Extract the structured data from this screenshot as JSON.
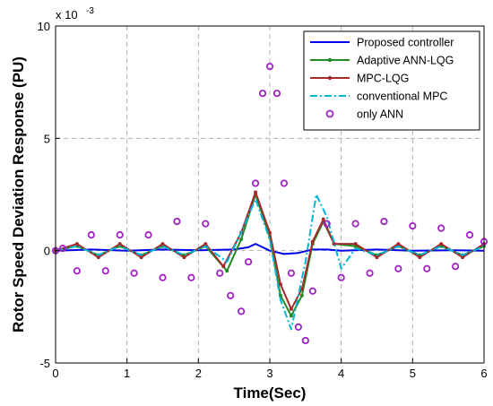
{
  "chart_data": {
    "type": "line",
    "title": "",
    "xlabel": "Time(Sec)",
    "ylabel": "Rotor Speed  Deviation Response  (PU)",
    "y_multiplier_label": "x 10",
    "y_multiplier_exponent": "-3",
    "xlim": [
      0,
      6
    ],
    "ylim": [
      -5,
      10
    ],
    "xticks": [
      0,
      1,
      2,
      3,
      4,
      5,
      6
    ],
    "yticks": [
      -5,
      0,
      5,
      10
    ],
    "grid": true,
    "legend_position": "top-right",
    "series": [
      {
        "name": "Proposed controller",
        "color": "#0000ee",
        "style": "solid",
        "x": [
          0,
          0.5,
          1,
          1.5,
          2,
          2.5,
          2.7,
          2.8,
          2.9,
          3.0,
          3.2,
          3.4,
          3.6,
          3.8,
          4.0,
          4.5,
          5,
          5.5,
          6
        ],
        "y": [
          0,
          0.05,
          0,
          0.05,
          0.02,
          0.05,
          0.15,
          0.3,
          0.15,
          0.0,
          -0.15,
          -0.1,
          0.05,
          0.05,
          0,
          0.05,
          0,
          0.02,
          0
        ]
      },
      {
        "name": "Adaptive ANN-LQG",
        "color": "#228b22",
        "style": "solid-marker",
        "x": [
          0,
          0.3,
          0.6,
          0.9,
          1.2,
          1.5,
          1.8,
          2.1,
          2.4,
          2.6,
          2.8,
          3.0,
          3.15,
          3.3,
          3.45,
          3.6,
          3.75,
          3.9,
          4.2,
          4.5,
          4.8,
          5.1,
          5.4,
          5.7,
          6
        ],
        "y": [
          0,
          0.2,
          -0.2,
          0.2,
          -0.2,
          0.2,
          -0.2,
          0.2,
          -0.9,
          0.5,
          2.5,
          0.6,
          -2.0,
          -2.9,
          -2.0,
          0.3,
          1.3,
          0.3,
          0.2,
          -0.2,
          0.2,
          -0.2,
          0.2,
          -0.2,
          0.2
        ]
      },
      {
        "name": " MPC-LQG",
        "color": "#a52a2a",
        "style": "solid-marker",
        "x": [
          0,
          0.3,
          0.6,
          0.9,
          1.2,
          1.5,
          1.8,
          2.1,
          2.35,
          2.6,
          2.8,
          3.0,
          3.15,
          3.3,
          3.45,
          3.6,
          3.75,
          3.9,
          4.2,
          4.5,
          4.8,
          5.1,
          5.4,
          5.7,
          6
        ],
        "y": [
          0,
          0.3,
          -0.3,
          0.3,
          -0.3,
          0.3,
          -0.3,
          0.3,
          -0.7,
          0.8,
          2.6,
          0.8,
          -1.5,
          -2.6,
          -1.7,
          0.4,
          1.4,
          0.3,
          0.3,
          -0.3,
          0.3,
          -0.3,
          0.3,
          -0.3,
          0.3
        ]
      },
      {
        "name": "conventional MPC",
        "color": "#00b4d8",
        "style": "dash-dot",
        "x": [
          0,
          0.3,
          0.6,
          0.9,
          1.2,
          1.5,
          1.8,
          2.1,
          2.4,
          2.6,
          2.8,
          3.0,
          3.15,
          3.3,
          3.5,
          3.65,
          3.8,
          4.0,
          4.2,
          4.5,
          4.8,
          5.1,
          5.4,
          5.7,
          6
        ],
        "y": [
          0,
          0.2,
          -0.2,
          0.2,
          -0.2,
          0.2,
          -0.2,
          0.2,
          -0.5,
          0.8,
          2.3,
          0.5,
          -2.2,
          -3.5,
          -0.5,
          2.5,
          1.5,
          -0.8,
          0.1,
          -0.2,
          0.2,
          -0.2,
          0.2,
          -0.2,
          0.2
        ]
      },
      {
        "name": "only ANN",
        "color": "#a020c8",
        "style": "marker",
        "x": [
          0,
          0.1,
          0.3,
          0.5,
          0.7,
          0.9,
          1.1,
          1.3,
          1.5,
          1.7,
          1.9,
          2.1,
          2.3,
          2.45,
          2.6,
          2.7,
          2.8,
          2.9,
          3.0,
          3.1,
          3.2,
          3.3,
          3.4,
          3.5,
          3.6,
          3.8,
          4.0,
          4.2,
          4.4,
          4.6,
          4.8,
          5.0,
          5.2,
          5.4,
          5.6,
          5.8,
          6
        ],
        "y": [
          0,
          0.1,
          -0.9,
          0.7,
          -0.9,
          0.7,
          -1.0,
          0.7,
          -1.2,
          1.3,
          -1.2,
          1.2,
          -1.0,
          -2.0,
          -2.7,
          -0.5,
          3.0,
          7.0,
          8.2,
          7.0,
          3.0,
          -1.0,
          -3.4,
          -4.0,
          -1.8,
          1.2,
          -1.2,
          1.2,
          -1.0,
          1.3,
          -0.8,
          1.1,
          -0.8,
          1.0,
          -0.7,
          0.7,
          0.4
        ]
      }
    ]
  }
}
